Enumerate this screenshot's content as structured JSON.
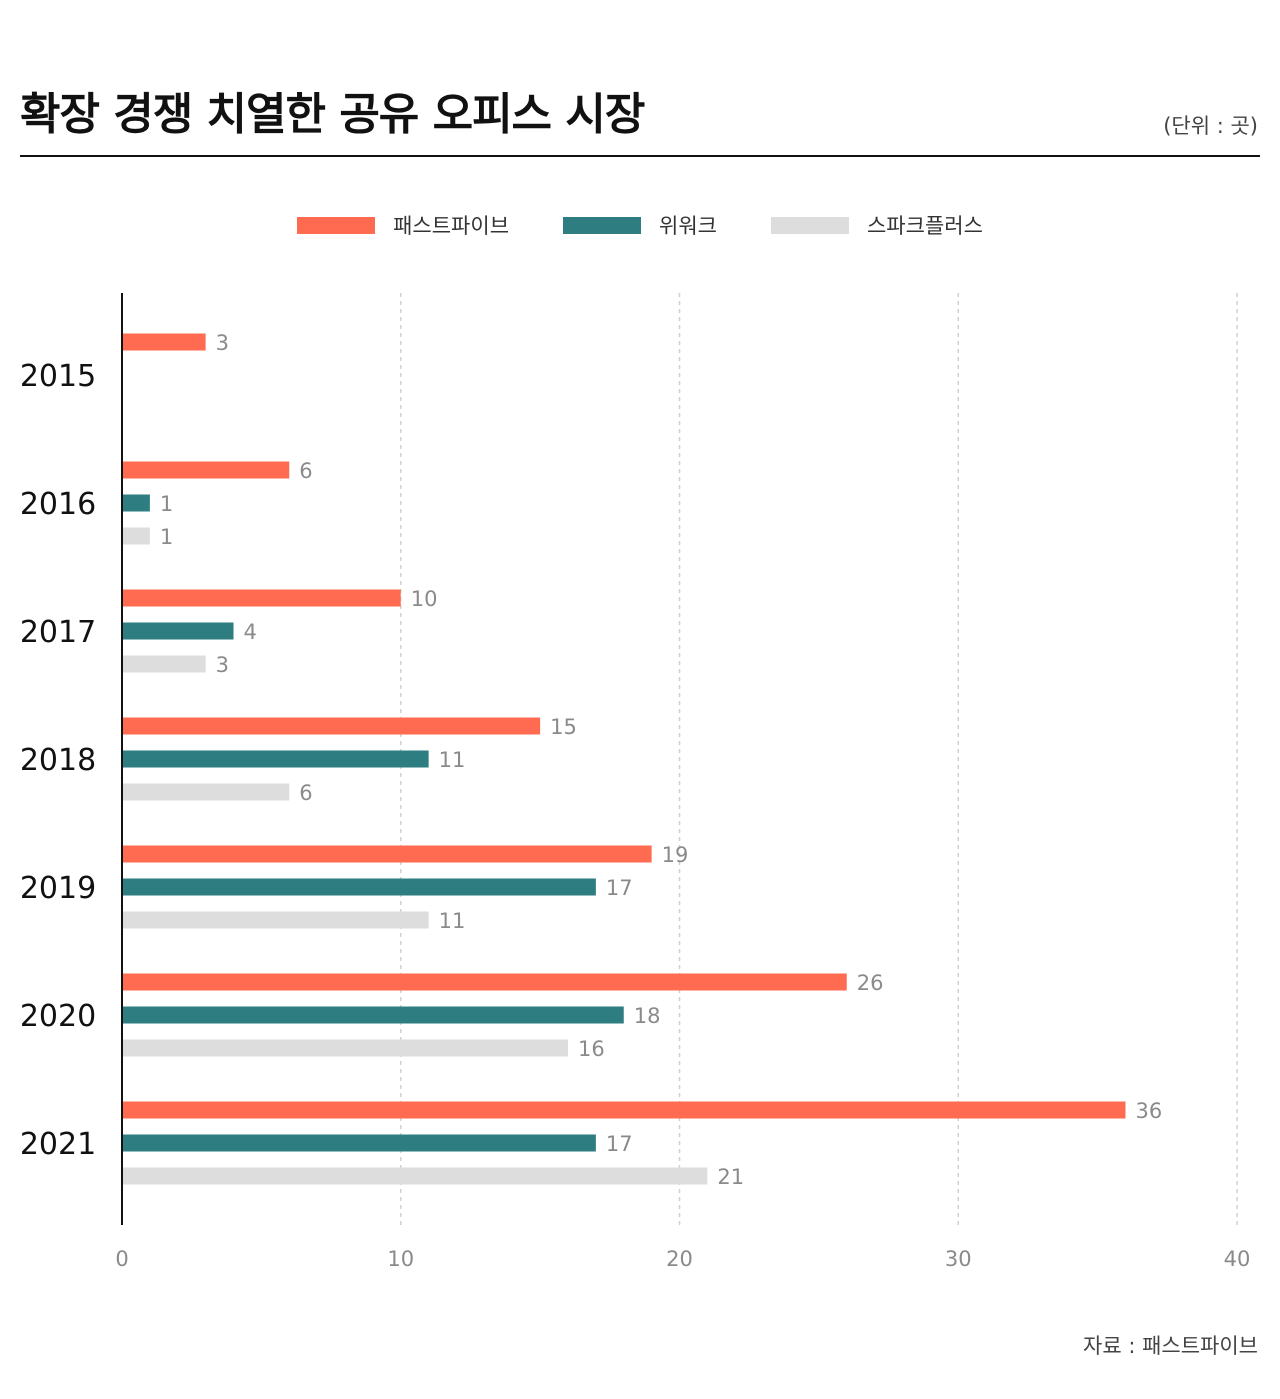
{
  "header": {
    "title": "확장 경쟁 치열한 공유 오피스 시장",
    "unit": "(단위 : 곳)"
  },
  "footer": {
    "source": "자료 : 패스트파이브"
  },
  "colors": {
    "fastfive": "#FF6B50",
    "wework": "#2E7D80",
    "sparkplus": "#DDDDDD",
    "grid": "#D0D0D0",
    "axis": "#111111",
    "tick_label": "#8A8A8A",
    "value_label": "#8A8A8A",
    "category_label": "#111111"
  },
  "chart_data": {
    "type": "bar",
    "orientation": "horizontal",
    "title": "확장 경쟁 치열한 공유 오피스 시장",
    "xlabel": "",
    "ylabel": "",
    "xlim": [
      0,
      40
    ],
    "xticks": [
      0,
      10,
      20,
      30,
      40
    ],
    "grid": true,
    "legend_position": "top-center",
    "categories": [
      "2015",
      "2016",
      "2017",
      "2018",
      "2019",
      "2020",
      "2021"
    ],
    "series": [
      {
        "name": "패스트파이브",
        "color": "#FF6B50",
        "values": [
          3,
          6,
          10,
          15,
          19,
          26,
          36
        ]
      },
      {
        "name": "위워크",
        "color": "#2E7D80",
        "values": [
          null,
          1,
          4,
          11,
          17,
          18,
          17
        ]
      },
      {
        "name": "스파크플러스",
        "color": "#DDDDDD",
        "values": [
          null,
          1,
          3,
          6,
          11,
          16,
          21
        ]
      }
    ]
  }
}
